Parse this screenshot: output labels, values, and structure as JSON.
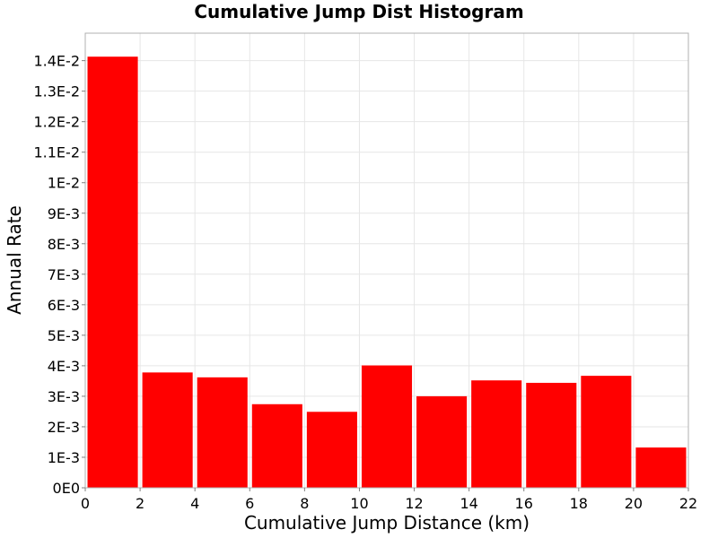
{
  "chart_data": {
    "type": "bar",
    "title": "Cumulative Jump Dist Histogram",
    "xlabel": "Cumulative Jump Distance (km)",
    "ylabel": "Annual Rate",
    "xlim": [
      0,
      22
    ],
    "ylim": [
      0,
      0.0149
    ],
    "grid": true,
    "bar_color": "#ff0000",
    "x_ticks": [
      0,
      2,
      4,
      6,
      8,
      10,
      12,
      14,
      16,
      18,
      20,
      22
    ],
    "x_tick_labels": [
      "0",
      "2",
      "4",
      "6",
      "8",
      "10",
      "12",
      "14",
      "16",
      "18",
      "20",
      "22"
    ],
    "y_ticks": [
      0,
      0.001,
      0.002,
      0.003,
      0.004,
      0.005,
      0.006,
      0.007,
      0.008,
      0.009,
      0.01,
      0.011,
      0.012,
      0.013,
      0.014
    ],
    "y_tick_labels": [
      "0E0",
      "1E-3",
      "2E-3",
      "3E-3",
      "4E-3",
      "5E-3",
      "6E-3",
      "7E-3",
      "8E-3",
      "9E-3",
      "1E-2",
      "1.1E-2",
      "1.2E-2",
      "1.3E-2",
      "1.4E-2"
    ],
    "bins": [
      {
        "x0": 0,
        "x1": 2,
        "value": 0.01413
      },
      {
        "x0": 2,
        "x1": 4,
        "value": 0.00378
      },
      {
        "x0": 4,
        "x1": 6,
        "value": 0.00362
      },
      {
        "x0": 6,
        "x1": 8,
        "value": 0.00274
      },
      {
        "x0": 8,
        "x1": 10,
        "value": 0.00249
      },
      {
        "x0": 10,
        "x1": 12,
        "value": 0.00401
      },
      {
        "x0": 12,
        "x1": 14,
        "value": 0.003
      },
      {
        "x0": 14,
        "x1": 16,
        "value": 0.00352
      },
      {
        "x0": 16,
        "x1": 18,
        "value": 0.00344
      },
      {
        "x0": 18,
        "x1": 20,
        "value": 0.00367
      },
      {
        "x0": 20,
        "x1": 22,
        "value": 0.00132
      }
    ]
  }
}
